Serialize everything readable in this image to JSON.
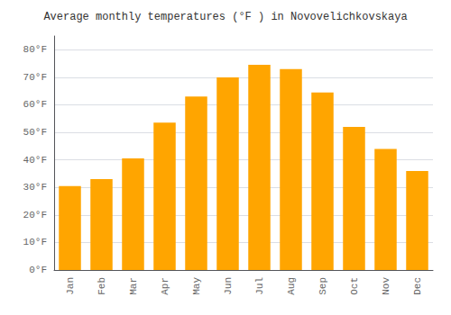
{
  "chart_data": {
    "type": "bar",
    "title": "Average monthly temperatures (°F ) in Novovelichkovskaya",
    "categories": [
      "Jan",
      "Feb",
      "Mar",
      "Apr",
      "May",
      "Jun",
      "Jul",
      "Aug",
      "Sep",
      "Oct",
      "Nov",
      "Dec"
    ],
    "values": [
      30.5,
      33.0,
      40.5,
      53.5,
      63.0,
      70.0,
      74.5,
      73.0,
      64.5,
      52.0,
      44.0,
      36.0
    ],
    "color": "#FFA500",
    "ylim": [
      0,
      85
    ],
    "yticks": [
      {
        "value": 0,
        "label": "0°F"
      },
      {
        "value": 10,
        "label": "10°F"
      },
      {
        "value": 20,
        "label": "20°F"
      },
      {
        "value": 30,
        "label": "30°F"
      },
      {
        "value": 40,
        "label": "40°F"
      },
      {
        "value": 50,
        "label": "50°F"
      },
      {
        "value": 60,
        "label": "60°F"
      },
      {
        "value": 70,
        "label": "70°F"
      },
      {
        "value": 80,
        "label": "80°F"
      }
    ],
    "grid": true
  }
}
